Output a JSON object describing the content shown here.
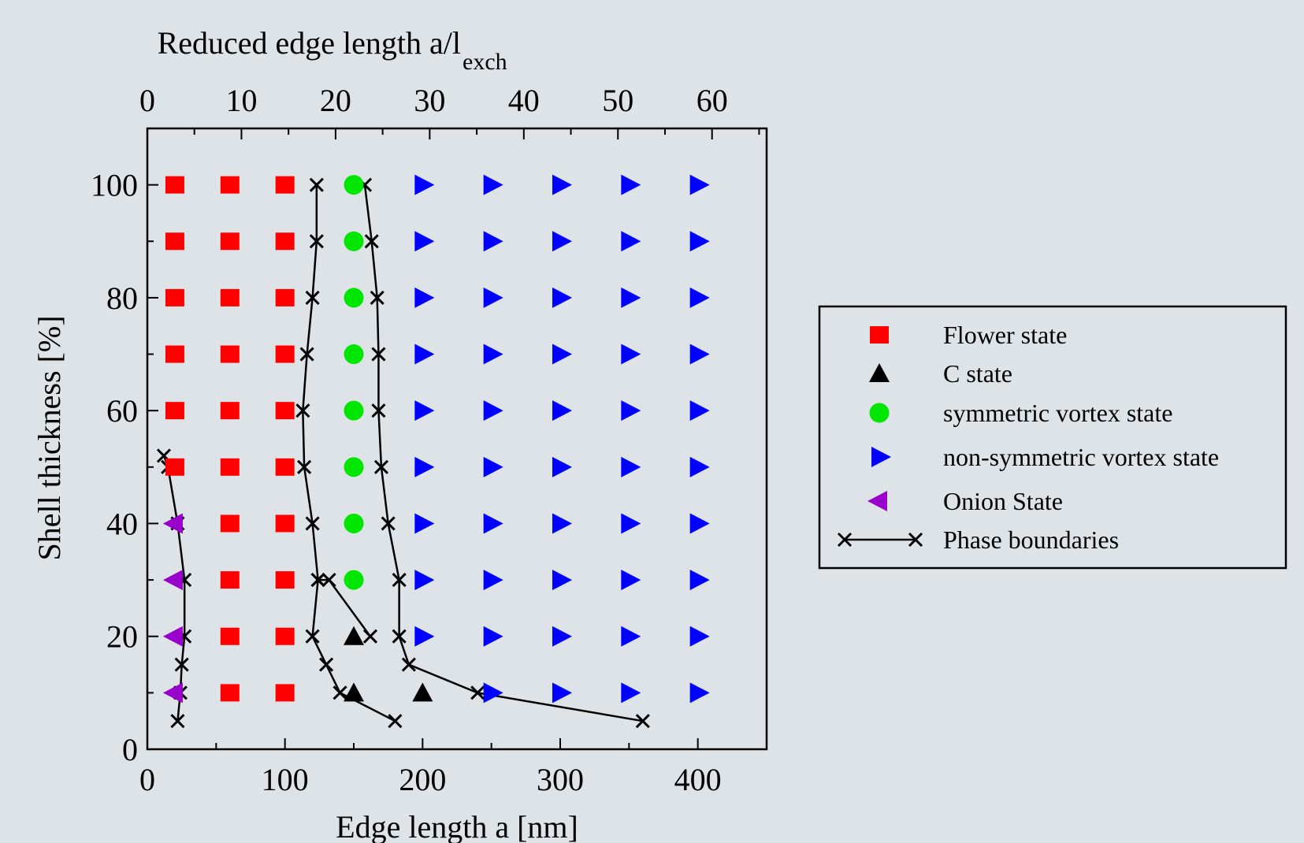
{
  "chart_data": {
    "type": "scatter",
    "xlabel": "Edge length a [nm]",
    "ylabel": "Shell thickness [%]",
    "top_xlabel_main": "Reduced edge length a/l",
    "top_xlabel_sub": "exch",
    "xlim": [
      0,
      450
    ],
    "ylim": [
      0,
      110
    ],
    "top_xlim": [
      0,
      65.8
    ],
    "x_ticks": [
      0,
      100,
      200,
      300,
      400
    ],
    "x_tick_labels": [
      "0",
      "100",
      "200",
      "300",
      "400"
    ],
    "y_ticks": [
      0,
      20,
      40,
      60,
      80,
      100
    ],
    "y_tick_labels": [
      "0",
      "20",
      "40",
      "60",
      "80",
      "100"
    ],
    "top_ticks": [
      0,
      10,
      20,
      30,
      40,
      50,
      60
    ],
    "top_tick_labels": [
      "0",
      "10",
      "20",
      "30",
      "40",
      "50",
      "60"
    ],
    "grid": false,
    "legend_position": "right",
    "series": [
      {
        "name": "Flower state",
        "marker": "square",
        "color": "#ff0000",
        "points": [
          [
            20,
            100
          ],
          [
            60,
            100
          ],
          [
            100,
            100
          ],
          [
            20,
            90
          ],
          [
            60,
            90
          ],
          [
            100,
            90
          ],
          [
            20,
            80
          ],
          [
            60,
            80
          ],
          [
            100,
            80
          ],
          [
            20,
            70
          ],
          [
            60,
            70
          ],
          [
            100,
            70
          ],
          [
            20,
            60
          ],
          [
            60,
            60
          ],
          [
            100,
            60
          ],
          [
            20,
            50
          ],
          [
            60,
            50
          ],
          [
            100,
            50
          ],
          [
            60,
            40
          ],
          [
            100,
            40
          ],
          [
            60,
            30
          ],
          [
            100,
            30
          ],
          [
            60,
            20
          ],
          [
            100,
            20
          ],
          [
            60,
            10
          ],
          [
            100,
            10
          ]
        ]
      },
      {
        "name": "C state",
        "marker": "triangle-up",
        "color": "#000000",
        "points": [
          [
            150,
            20
          ],
          [
            150,
            10
          ],
          [
            200,
            10
          ]
        ]
      },
      {
        "name": "symmetric vortex state",
        "marker": "circle",
        "color": "#00e600",
        "points": [
          [
            150,
            100
          ],
          [
            150,
            90
          ],
          [
            150,
            80
          ],
          [
            150,
            70
          ],
          [
            150,
            60
          ],
          [
            150,
            50
          ],
          [
            150,
            40
          ],
          [
            150,
            30
          ]
        ]
      },
      {
        "name": "non-symmetric vortex state",
        "marker": "triangle-right",
        "color": "#0000ff",
        "points": [
          [
            200,
            100
          ],
          [
            250,
            100
          ],
          [
            300,
            100
          ],
          [
            350,
            100
          ],
          [
            400,
            100
          ],
          [
            200,
            90
          ],
          [
            250,
            90
          ],
          [
            300,
            90
          ],
          [
            350,
            90
          ],
          [
            400,
            90
          ],
          [
            200,
            80
          ],
          [
            250,
            80
          ],
          [
            300,
            80
          ],
          [
            350,
            80
          ],
          [
            400,
            80
          ],
          [
            200,
            70
          ],
          [
            250,
            70
          ],
          [
            300,
            70
          ],
          [
            350,
            70
          ],
          [
            400,
            70
          ],
          [
            200,
            60
          ],
          [
            250,
            60
          ],
          [
            300,
            60
          ],
          [
            350,
            60
          ],
          [
            400,
            60
          ],
          [
            200,
            50
          ],
          [
            250,
            50
          ],
          [
            300,
            50
          ],
          [
            350,
            50
          ],
          [
            400,
            50
          ],
          [
            200,
            40
          ],
          [
            250,
            40
          ],
          [
            300,
            40
          ],
          [
            350,
            40
          ],
          [
            400,
            40
          ],
          [
            200,
            30
          ],
          [
            250,
            30
          ],
          [
            300,
            30
          ],
          [
            350,
            30
          ],
          [
            400,
            30
          ],
          [
            200,
            20
          ],
          [
            250,
            20
          ],
          [
            300,
            20
          ],
          [
            350,
            20
          ],
          [
            400,
            20
          ],
          [
            250,
            10
          ],
          [
            300,
            10
          ],
          [
            350,
            10
          ],
          [
            400,
            10
          ]
        ]
      },
      {
        "name": "Onion State",
        "marker": "triangle-left",
        "color": "#9900cc",
        "points": [
          [
            20,
            40
          ],
          [
            20,
            30
          ],
          [
            20,
            20
          ],
          [
            20,
            10
          ]
        ]
      },
      {
        "name": "Phase boundaries",
        "marker": "cross-line",
        "color": "#000000",
        "lines": [
          [
            [
              12,
              52
            ],
            [
              15,
              50
            ],
            [
              22,
              40
            ],
            [
              27,
              30
            ],
            [
              27,
              20
            ],
            [
              25,
              15
            ],
            [
              24,
              10
            ],
            [
              22,
              5
            ]
          ],
          [
            [
              123,
              100
            ],
            [
              123,
              90
            ],
            [
              120,
              80
            ],
            [
              116,
              70
            ],
            [
              113,
              60
            ],
            [
              114,
              50
            ],
            [
              120,
              40
            ],
            [
              124,
              30
            ],
            [
              120,
              20
            ],
            [
              130,
              15
            ],
            [
              140,
              10
            ],
            [
              180,
              5
            ]
          ],
          [
            [
              158,
              100
            ],
            [
              163,
              90
            ],
            [
              167,
              80
            ],
            [
              168,
              70
            ],
            [
              168,
              60
            ],
            [
              170,
              50
            ],
            [
              175,
              40
            ],
            [
              183,
              30
            ],
            [
              183,
              20
            ],
            [
              190,
              15
            ],
            [
              240,
              10
            ],
            [
              360,
              5
            ]
          ],
          [
            [
              124,
              30
            ],
            [
              132,
              30
            ],
            [
              162,
              20
            ]
          ]
        ]
      }
    ]
  }
}
